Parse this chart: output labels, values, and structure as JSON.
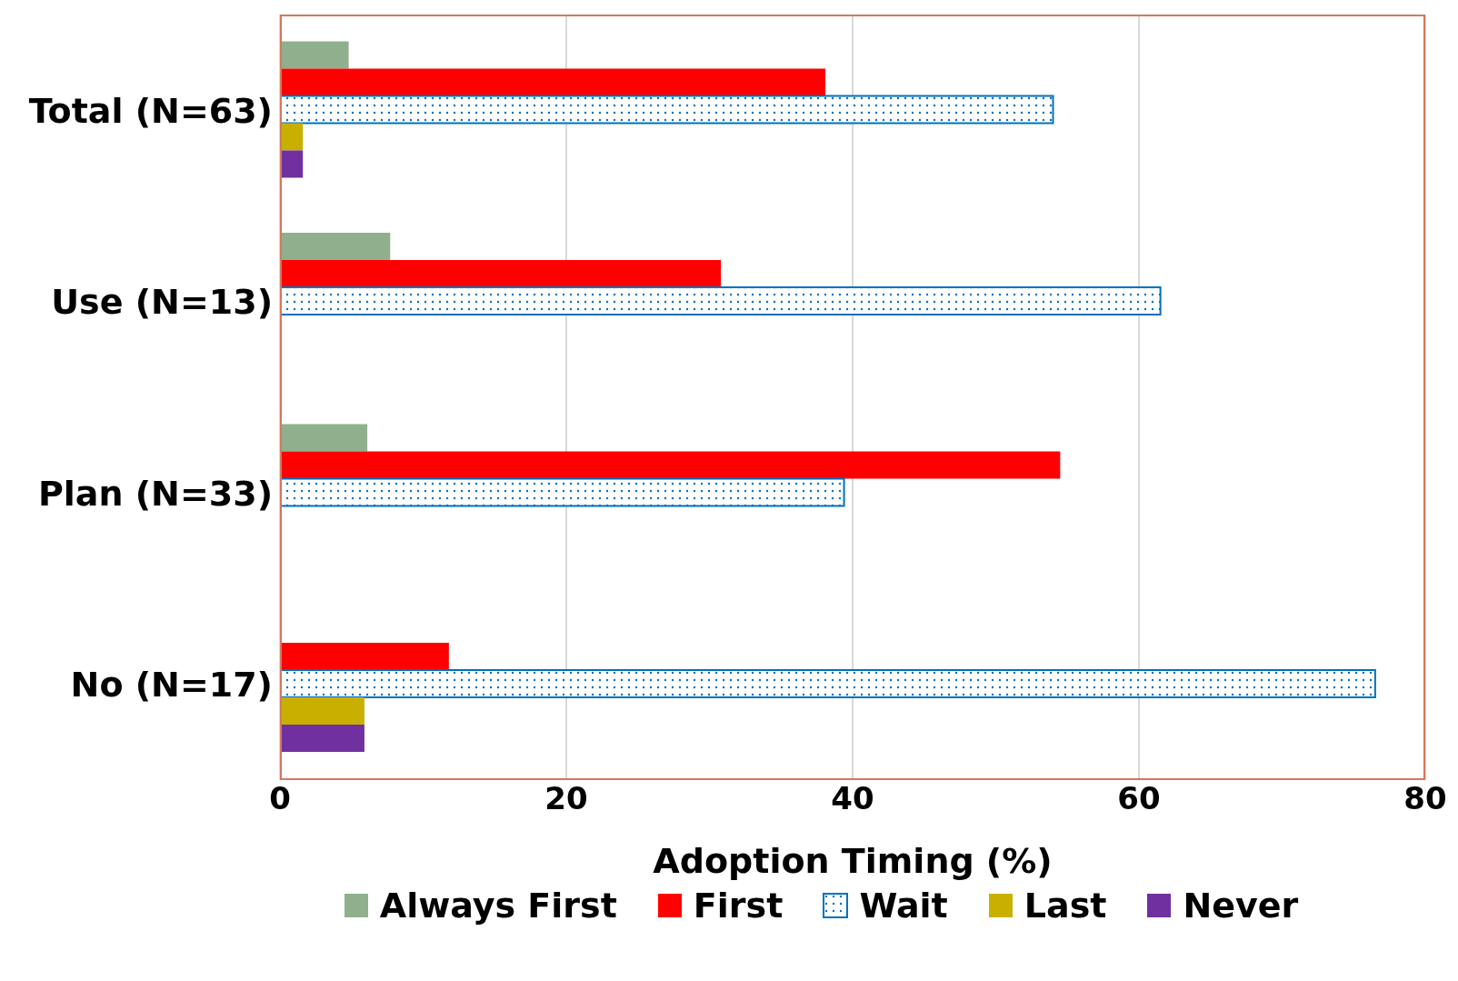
{
  "chart_data": {
    "type": "bar",
    "orientation": "horizontal",
    "xlabel": "Adoption Timing (%)",
    "categories": [
      "Total (N=63)",
      "Use (N=13)",
      "Plan (N=33)",
      "No (N=17)"
    ],
    "series": [
      {
        "name": "Always First",
        "color": "#8fb08c",
        "values": [
          4.8,
          7.7,
          6.1,
          null
        ]
      },
      {
        "name": "First",
        "color": "#ff0000",
        "values": [
          38.1,
          30.8,
          54.5,
          11.8
        ]
      },
      {
        "name": "Wait",
        "color": "#0070c0",
        "values": [
          54.0,
          61.5,
          39.4,
          76.5
        ]
      },
      {
        "name": "Last",
        "color": "#c9b000",
        "values": [
          1.6,
          null,
          null,
          5.9
        ]
      },
      {
        "name": "Never",
        "color": "#7030a0",
        "values": [
          1.6,
          null,
          null,
          5.9
        ]
      }
    ],
    "xlim": [
      0,
      80
    ],
    "xticks": [
      0,
      20,
      40,
      60,
      80
    ],
    "grid": "x",
    "legend": "bottom"
  }
}
